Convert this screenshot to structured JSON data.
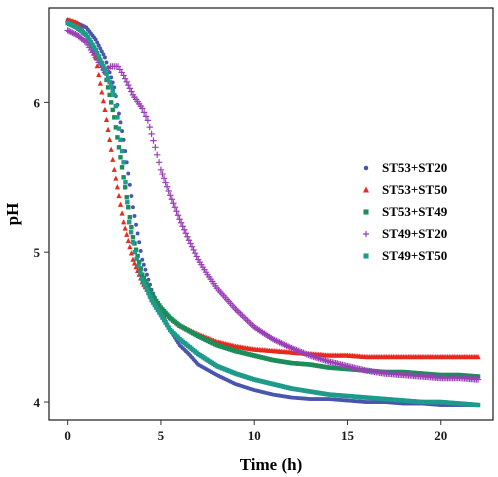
{
  "chart_data": {
    "type": "scatter",
    "title": "",
    "xlabel": "Time (h)",
    "ylabel": "pH",
    "xlim": [
      -1,
      22.8
    ],
    "ylim": [
      3.88,
      6.63
    ],
    "x_ticks": [
      0,
      5,
      10,
      15,
      20
    ],
    "y_ticks": [
      4,
      5,
      6
    ],
    "grid": false,
    "legend_position": "right",
    "series": [
      {
        "name": "ST53+ST20",
        "color": "#4A55AE",
        "marker": "dot",
        "points": [
          [
            0,
            6.55
          ],
          [
            0.5,
            6.53
          ],
          [
            1,
            6.5
          ],
          [
            1.5,
            6.42
          ],
          [
            2,
            6.3
          ],
          [
            2.5,
            6.1
          ],
          [
            3,
            5.75
          ],
          [
            3.5,
            5.3
          ],
          [
            4,
            4.95
          ],
          [
            4.5,
            4.75
          ],
          [
            5,
            4.6
          ],
          [
            5.5,
            4.48
          ],
          [
            6,
            4.38
          ],
          [
            6.5,
            4.32
          ],
          [
            7,
            4.25
          ],
          [
            8,
            4.18
          ],
          [
            9,
            4.12
          ],
          [
            10,
            4.08
          ],
          [
            11,
            4.05
          ],
          [
            12,
            4.03
          ],
          [
            13,
            4.02
          ],
          [
            14,
            4.02
          ],
          [
            15,
            4.01
          ],
          [
            16,
            4.0
          ],
          [
            17,
            4.0
          ],
          [
            18,
            3.99
          ],
          [
            19,
            3.99
          ],
          [
            20,
            3.98
          ],
          [
            21,
            3.98
          ],
          [
            22,
            3.98
          ]
        ]
      },
      {
        "name": "ST53+ST50",
        "color": "#E8291C",
        "marker": "triangle",
        "points": [
          [
            0,
            6.55
          ],
          [
            0.5,
            6.53
          ],
          [
            1,
            6.45
          ],
          [
            1.5,
            6.3
          ],
          [
            2,
            5.95
          ],
          [
            2.5,
            5.55
          ],
          [
            3,
            5.2
          ],
          [
            3.5,
            4.95
          ],
          [
            4,
            4.8
          ],
          [
            4.5,
            4.7
          ],
          [
            5,
            4.62
          ],
          [
            5.5,
            4.56
          ],
          [
            6,
            4.51
          ],
          [
            7,
            4.45
          ],
          [
            8,
            4.4
          ],
          [
            9,
            4.37
          ],
          [
            10,
            4.35
          ],
          [
            11,
            4.34
          ],
          [
            12,
            4.33
          ],
          [
            13,
            4.32
          ],
          [
            14,
            4.31
          ],
          [
            15,
            4.31
          ],
          [
            16,
            4.3
          ],
          [
            17,
            4.3
          ],
          [
            18,
            4.3
          ],
          [
            19,
            4.3
          ],
          [
            20,
            4.3
          ],
          [
            21,
            4.3
          ],
          [
            22,
            4.3
          ]
        ]
      },
      {
        "name": "ST53+ST49",
        "color": "#1E8C5A",
        "marker": "square",
        "points": [
          [
            0,
            6.53
          ],
          [
            0.5,
            6.5
          ],
          [
            1,
            6.45
          ],
          [
            1.5,
            6.35
          ],
          [
            2,
            6.2
          ],
          [
            2.5,
            5.9
          ],
          [
            3,
            5.5
          ],
          [
            3.5,
            5.1
          ],
          [
            4,
            4.85
          ],
          [
            4.5,
            4.72
          ],
          [
            5,
            4.63
          ],
          [
            5.5,
            4.56
          ],
          [
            6,
            4.51
          ],
          [
            7,
            4.44
          ],
          [
            8,
            4.38
          ],
          [
            9,
            4.34
          ],
          [
            10,
            4.31
          ],
          [
            11,
            4.28
          ],
          [
            12,
            4.26
          ],
          [
            13,
            4.25
          ],
          [
            14,
            4.23
          ],
          [
            15,
            4.22
          ],
          [
            16,
            4.21
          ],
          [
            17,
            4.2
          ],
          [
            18,
            4.2
          ],
          [
            19,
            4.19
          ],
          [
            20,
            4.18
          ],
          [
            21,
            4.18
          ],
          [
            22,
            4.17
          ]
        ]
      },
      {
        "name": "ST49+ST20",
        "color": "#9A3FB5",
        "marker": "plus",
        "points": [
          [
            0,
            6.48
          ],
          [
            0.5,
            6.45
          ],
          [
            1,
            6.4
          ],
          [
            1.5,
            6.3
          ],
          [
            2,
            6.2
          ],
          [
            2.3,
            6.24
          ],
          [
            2.7,
            6.24
          ],
          [
            3,
            6.18
          ],
          [
            3.5,
            6.05
          ],
          [
            4,
            5.96
          ],
          [
            4.3,
            5.88
          ],
          [
            4.7,
            5.7
          ],
          [
            5,
            5.55
          ],
          [
            5.5,
            5.38
          ],
          [
            6,
            5.22
          ],
          [
            6.5,
            5.08
          ],
          [
            7,
            4.95
          ],
          [
            7.5,
            4.85
          ],
          [
            8,
            4.76
          ],
          [
            9,
            4.62
          ],
          [
            10,
            4.5
          ],
          [
            11,
            4.42
          ],
          [
            12,
            4.36
          ],
          [
            13,
            4.31
          ],
          [
            14,
            4.27
          ],
          [
            15,
            4.24
          ],
          [
            16,
            4.21
          ],
          [
            17,
            4.19
          ],
          [
            18,
            4.18
          ],
          [
            19,
            4.17
          ],
          [
            20,
            4.16
          ],
          [
            21,
            4.16
          ],
          [
            22,
            4.15
          ]
        ]
      },
      {
        "name": "ST49+ST50",
        "color": "#1F9A8C",
        "marker": "square",
        "points": [
          [
            0,
            6.53
          ],
          [
            0.5,
            6.5
          ],
          [
            1,
            6.45
          ],
          [
            1.5,
            6.35
          ],
          [
            2,
            6.22
          ],
          [
            2.5,
            6.05
          ],
          [
            3,
            5.6
          ],
          [
            3.3,
            5.2
          ],
          [
            3.6,
            5.0
          ],
          [
            4,
            4.82
          ],
          [
            4.5,
            4.68
          ],
          [
            5,
            4.58
          ],
          [
            5.5,
            4.48
          ],
          [
            6,
            4.42
          ],
          [
            7,
            4.32
          ],
          [
            8,
            4.24
          ],
          [
            9,
            4.19
          ],
          [
            10,
            4.15
          ],
          [
            11,
            4.12
          ],
          [
            12,
            4.09
          ],
          [
            13,
            4.07
          ],
          [
            14,
            4.05
          ],
          [
            15,
            4.04
          ],
          [
            16,
            4.03
          ],
          [
            17,
            4.02
          ],
          [
            18,
            4.01
          ],
          [
            19,
            4.0
          ],
          [
            20,
            4.0
          ],
          [
            21,
            3.99
          ],
          [
            22,
            3.98
          ]
        ]
      }
    ]
  }
}
